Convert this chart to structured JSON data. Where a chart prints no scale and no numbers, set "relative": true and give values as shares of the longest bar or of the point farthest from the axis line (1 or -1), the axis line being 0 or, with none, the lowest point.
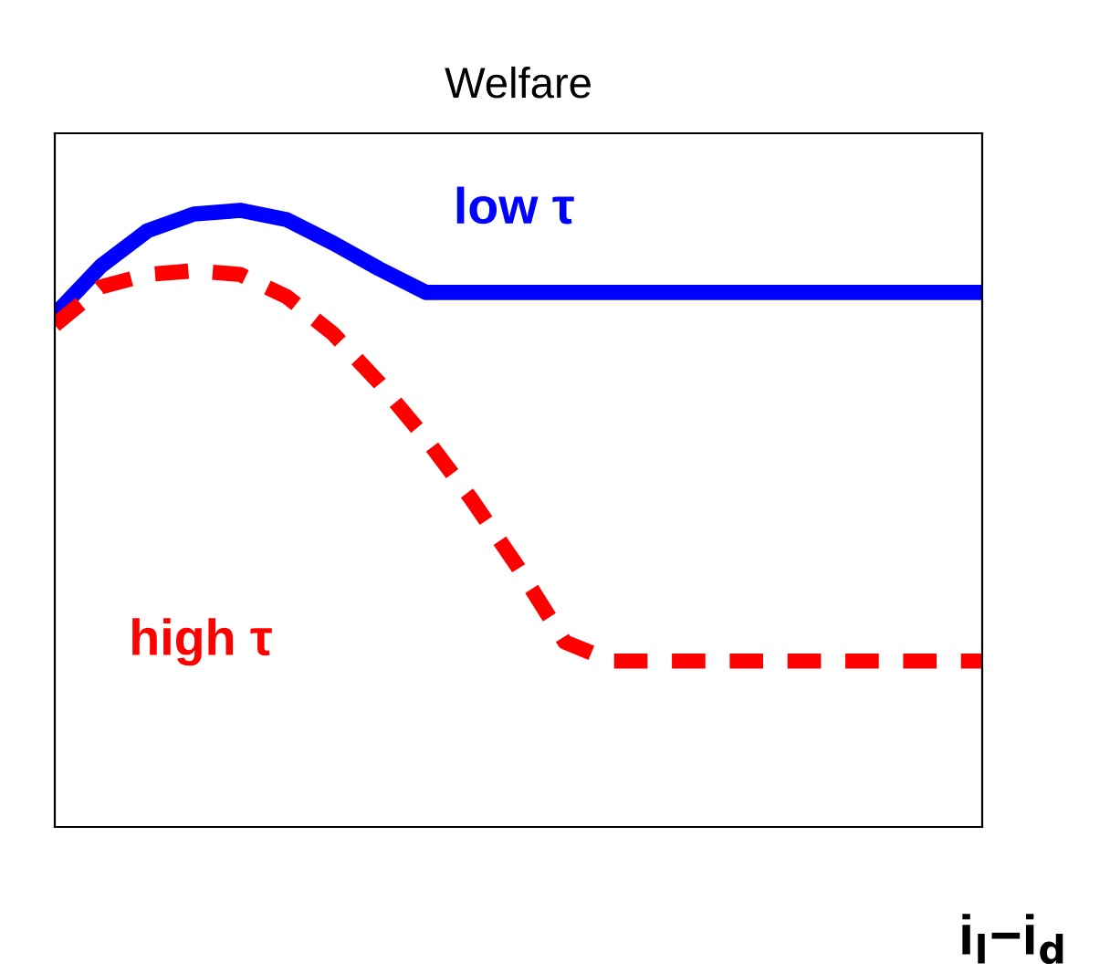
{
  "chart_data": {
    "type": "line",
    "title": "Welfare",
    "xlabel": "i$_{l}$−i$_{d}$",
    "relative": true,
    "categories": [
      null,
      null,
      null,
      null,
      null,
      null,
      null,
      null,
      null,
      null,
      null,
      null,
      null,
      null,
      null,
      null,
      null,
      null,
      null,
      null,
      null
    ],
    "series": [
      {
        "name": "low τ",
        "color": "#0000ff",
        "line_style": "solid",
        "values": [
          0.831,
          0.91,
          0.967,
          0.994,
          1.0,
          0.985,
          0.947,
          0.905,
          0.867,
          0.867,
          0.867,
          0.867,
          0.867,
          0.867,
          0.867,
          0.867,
          0.867,
          0.867,
          0.867,
          0.867,
          0.867
        ]
      },
      {
        "name": "high τ",
        "color": "#ff0000",
        "line_style": "dashed",
        "values": [
          0.814,
          0.876,
          0.896,
          0.902,
          0.896,
          0.86,
          0.8,
          0.72,
          0.63,
          0.53,
          0.42,
          0.3,
          0.269,
          0.269,
          0.269,
          0.269,
          0.269,
          0.269,
          0.269,
          0.269,
          0.269
        ]
      }
    ]
  }
}
